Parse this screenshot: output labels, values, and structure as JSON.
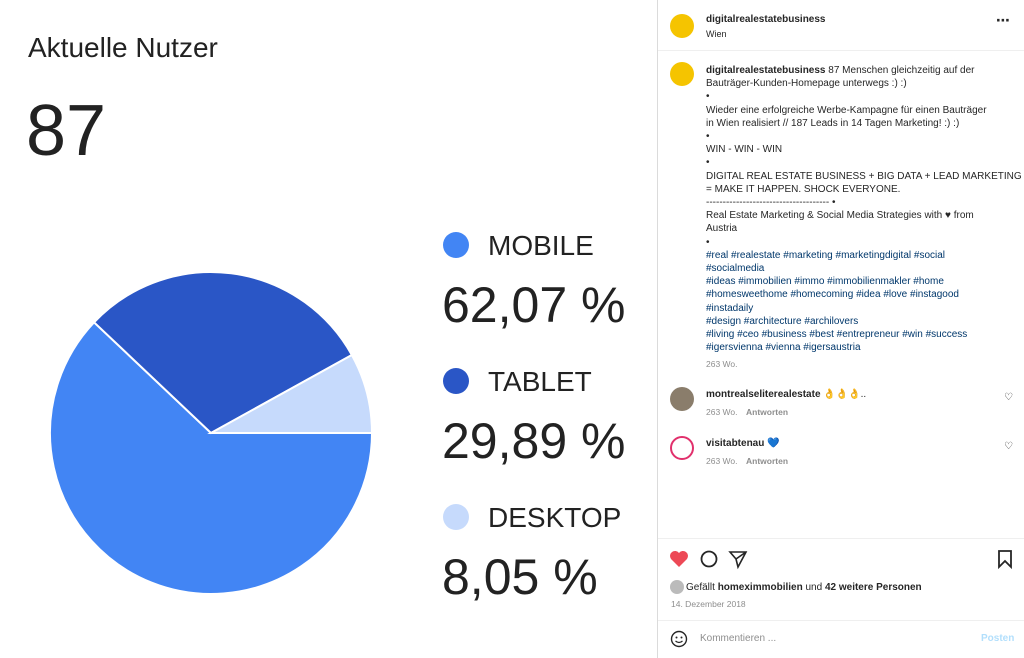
{
  "image": {
    "type": "pie",
    "title": "Aktuelle Nutzer",
    "total": 87,
    "categories": [
      "MOBILE",
      "TABLET",
      "DESKTOP"
    ],
    "values": [
      62.07,
      29.89,
      8.05
    ],
    "value_labels": [
      "62,07 %",
      "29,89 %",
      "8,05 %"
    ],
    "colors": [
      "#4285f4",
      "#2a56c6",
      "#c6dafc"
    ]
  },
  "post": {
    "username": "digitalrealestatebusiness",
    "location": "Wien",
    "caption_lines": [
      "87 Menschen gleichzeitig auf der",
      "Bauträger-Kunden-Homepage unterwegs :) :)",
      "•",
      "Wieder eine erfolgreiche Werbe-Kampagne für einen Bauträger",
      "in Wien realisiert // 187 Leads in 14 Tagen Marketing! :) :)",
      "•",
      "WIN - WIN - WIN",
      "•",
      "DIGITAL REAL ESTATE BUSINESS + BIG DATA + LEAD MARKETING",
      "= MAKE IT HAPPEN. SHOCK EVERYONE.",
      "------------------------------------- •",
      "Real Estate Marketing & Social Media Strategies with ♥ from",
      "Austria",
      "•"
    ],
    "hashtag_lines": [
      "#real #realestate #marketing #marketingdigital #social",
      "#socialmedia",
      "#ideas #immobilien #immo #immobilienmakler #home",
      "#homesweethome #homecoming #idea #love #instagood",
      "#instadaily",
      "#design #architecture #archilovers",
      "#living #ceo #business #best #entrepreneur #win #success",
      "#igersvienna #vienna #igersaustria"
    ],
    "caption_time": "263 Wo.",
    "comments": [
      {
        "user": "montrealseliterealestate",
        "text": "👌👌👌..",
        "time": "263 Wo.",
        "reply": "Antworten"
      },
      {
        "user": "visitabtenau",
        "text": "💙",
        "time": "263 Wo.",
        "reply": "Antworten"
      }
    ],
    "likes_prefix": "Gefällt",
    "liked_by": "homeximmobilien",
    "likes_middle": "und",
    "likes_others": "42 weitere Personen",
    "date": "14. Dezember 2018",
    "comment_placeholder": "Kommentieren ...",
    "post_button": "Posten"
  }
}
